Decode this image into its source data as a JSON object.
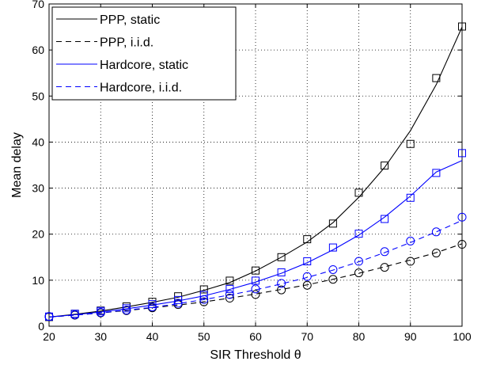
{
  "chart_data": {
    "type": "line",
    "xlabel": "SIR Threshold θ",
    "ylabel": "Mean delay",
    "xlim": [
      20,
      100
    ],
    "ylim": [
      0,
      70
    ],
    "x_ticks": [
      20,
      30,
      40,
      50,
      60,
      70,
      80,
      90,
      100
    ],
    "y_ticks": [
      0,
      10,
      20,
      30,
      40,
      50,
      60,
      70
    ],
    "grid": true,
    "legend_position": "top-left",
    "series": [
      {
        "name": "PPP, static",
        "color": "#000000",
        "line_style": "solid",
        "marker": "square",
        "curve_x": [
          20,
          25,
          30,
          35,
          40,
          45,
          50,
          55,
          60,
          65,
          70,
          75,
          80,
          85,
          90,
          95,
          100
        ],
        "curve_y": [
          2.0,
          2.6,
          3.3,
          4.2,
          5.2,
          6.3,
          7.8,
          9.5,
          12.0,
          15.0,
          18.3,
          22.5,
          28.0,
          34.5,
          42.5,
          52.5,
          65.0
        ],
        "marker_x": [
          20,
          25,
          30,
          35,
          40,
          45,
          50,
          55,
          60,
          65,
          70,
          75,
          80,
          85,
          90,
          95,
          100
        ],
        "marker_y": [
          2.0,
          2.7,
          3.4,
          4.3,
          5.3,
          6.5,
          8.0,
          9.9,
          12.1,
          15.0,
          18.9,
          22.3,
          29.0,
          34.9,
          39.6,
          53.9,
          65.1
        ]
      },
      {
        "name": "PPP, i.i.d.",
        "color": "#000000",
        "line_style": "dashed",
        "marker": "circle",
        "curve_x": [
          20,
          25,
          30,
          35,
          40,
          45,
          50,
          55,
          60,
          65,
          70,
          75,
          80,
          85,
          90,
          95,
          100
        ],
        "curve_y": [
          2.0,
          2.4,
          2.9,
          3.4,
          4.0,
          4.6,
          5.3,
          6.1,
          7.0,
          8.0,
          9.0,
          10.2,
          11.5,
          12.9,
          14.4,
          16.0,
          17.9
        ],
        "marker_x": [
          20,
          25,
          30,
          35,
          40,
          45,
          50,
          55,
          60,
          65,
          70,
          75,
          80,
          85,
          90,
          95,
          100
        ],
        "marker_y": [
          2.1,
          2.4,
          2.9,
          3.4,
          4.0,
          4.7,
          5.3,
          6.1,
          6.9,
          7.9,
          8.9,
          10.2,
          11.6,
          12.8,
          14.1,
          15.9,
          17.8
        ]
      },
      {
        "name": "Hardcore, static",
        "color": "#0000ff",
        "line_style": "solid",
        "marker": "square",
        "curve_x": [
          20,
          25,
          30,
          35,
          40,
          45,
          50,
          55,
          60,
          65,
          70,
          75,
          80,
          85,
          90,
          95,
          100
        ],
        "curve_y": [
          2.0,
          2.5,
          3.1,
          3.8,
          4.6,
          5.5,
          6.6,
          8.0,
          9.6,
          11.5,
          13.8,
          16.6,
          19.8,
          23.7,
          28.3,
          33.5,
          36.0
        ],
        "marker_x": [
          20,
          25,
          30,
          35,
          40,
          45,
          50,
          55,
          60,
          65,
          70,
          75,
          80,
          85,
          90,
          95,
          100
        ],
        "marker_y": [
          2.1,
          2.7,
          3.3,
          3.9,
          4.8,
          5.7,
          6.8,
          8.1,
          9.9,
          11.7,
          14.1,
          17.1,
          20.1,
          23.3,
          27.9,
          33.3,
          37.6
        ]
      },
      {
        "name": "Hardcore, i.i.d.",
        "color": "#0000ff",
        "line_style": "dashed",
        "marker": "circle",
        "curve_x": [
          20,
          25,
          30,
          35,
          40,
          45,
          50,
          55,
          60,
          65,
          70,
          75,
          80,
          85,
          90,
          95,
          100
        ],
        "curve_y": [
          2.0,
          2.4,
          2.9,
          3.5,
          4.1,
          4.9,
          5.8,
          6.8,
          7.9,
          9.2,
          10.6,
          12.2,
          14.0,
          16.0,
          18.2,
          20.5,
          23.0
        ],
        "marker_x": [
          20,
          25,
          30,
          35,
          40,
          45,
          50,
          55,
          60,
          65,
          70,
          75,
          80,
          85,
          90,
          95,
          100
        ],
        "marker_y": [
          2.1,
          2.5,
          3.0,
          3.5,
          4.2,
          5.0,
          5.8,
          6.9,
          8.1,
          9.3,
          10.8,
          12.3,
          14.1,
          16.2,
          18.5,
          20.5,
          23.7
        ]
      }
    ]
  }
}
